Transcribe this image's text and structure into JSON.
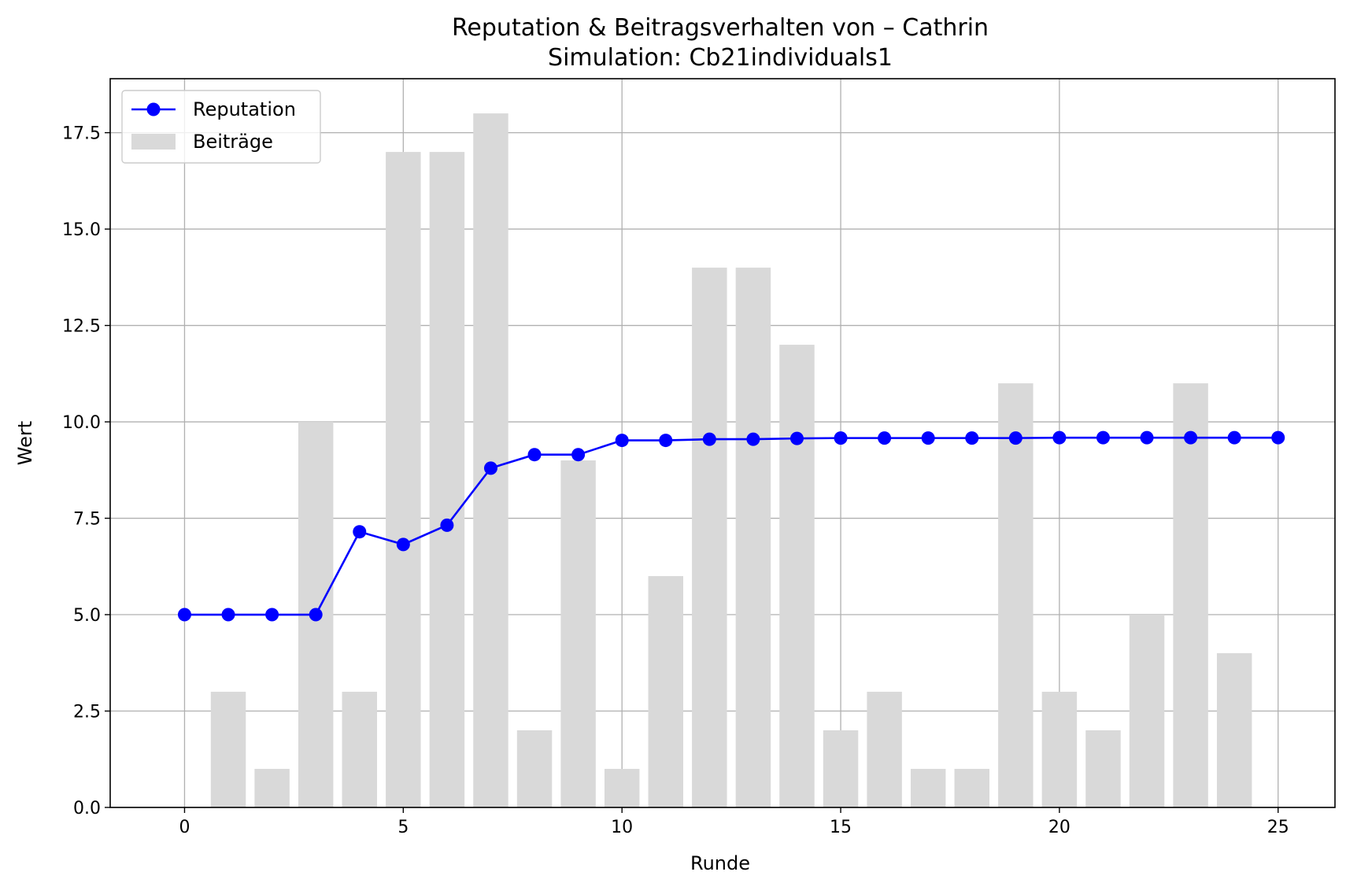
{
  "chart_data": {
    "type": "bar+line",
    "title": "Reputation & Beitragsverhalten von – Cathrin",
    "subtitle": "Simulation: Cb21individuals1",
    "xlabel": "Runde",
    "ylabel": "Wert",
    "xlim": [
      -1.7,
      26.3
    ],
    "ylim": [
      0,
      18.9
    ],
    "xticks": [
      0,
      5,
      10,
      15,
      20,
      25
    ],
    "yticks": [
      0.0,
      2.5,
      5.0,
      7.5,
      10.0,
      12.5,
      15.0,
      17.5
    ],
    "grid": true,
    "legend_position": "upper-left",
    "x": [
      0,
      1,
      2,
      3,
      4,
      5,
      6,
      7,
      8,
      9,
      10,
      11,
      12,
      13,
      14,
      15,
      16,
      17,
      18,
      19,
      20,
      21,
      22,
      23,
      24,
      25
    ],
    "series": [
      {
        "name": "Reputation",
        "kind": "line",
        "color": "#0000ff",
        "values": [
          5.0,
          5.0,
          5.0,
          5.0,
          7.15,
          6.82,
          7.32,
          8.8,
          9.15,
          9.15,
          9.52,
          9.52,
          9.55,
          9.55,
          9.57,
          9.58,
          9.58,
          9.58,
          9.58,
          9.58,
          9.59,
          9.59,
          9.59,
          9.59,
          9.59,
          9.59
        ]
      },
      {
        "name": "Beiträge",
        "kind": "bar",
        "color": "#d9d9d9",
        "values": [
          0,
          3,
          1,
          10,
          3,
          17,
          17,
          18,
          2,
          9,
          1,
          6,
          14,
          14,
          12,
          2,
          3,
          1,
          1,
          11,
          3,
          2,
          5,
          11,
          4,
          0
        ]
      }
    ]
  }
}
